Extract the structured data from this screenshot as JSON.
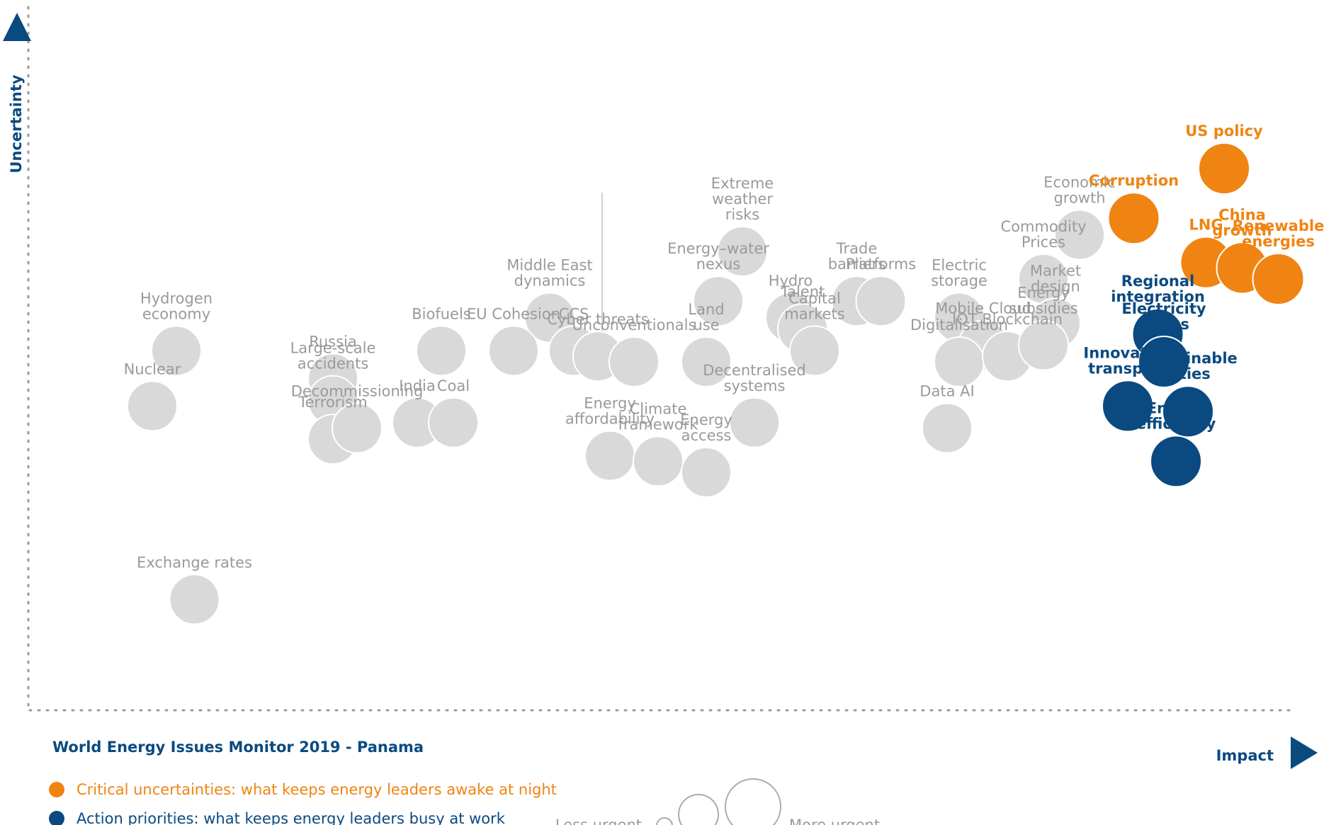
{
  "chart_data": {
    "type": "scatter",
    "title": "World Energy Issues Monitor 2019 - Panama",
    "xlabel": "Impact",
    "ylabel": "Uncertainty",
    "colors": {
      "uncertainty": "#ef8412",
      "priority": "#0b4a80",
      "other": "#d9d9d9",
      "label_grey": "#9a9a9a",
      "title": "#0b4a80",
      "axis": "#9a9a9a"
    },
    "legend": [
      {
        "kind": "uncertainty",
        "text": "Critical uncertainties: what keeps energy leaders awake at night"
      },
      {
        "kind": "priority",
        "text": "Action priorities: what keeps energy leaders busy at work"
      }
    ],
    "size_legend": {
      "less": "Less urgent",
      "more": "More urgent"
    },
    "issues": [
      {
        "name": "Hydrogen economy",
        "lines": [
          "Hydrogen",
          "economy"
        ],
        "kind": "other",
        "impact": 0.07,
        "uncertainty": 0.57
      },
      {
        "name": "Nuclear",
        "lines": [
          "Nuclear"
        ],
        "kind": "other",
        "impact": 0.05,
        "uncertainty": 0.47
      },
      {
        "name": "Exchange rates",
        "lines": [
          "Exchange rates"
        ],
        "kind": "other",
        "impact": 0.085,
        "uncertainty": 0.12
      },
      {
        "name": "Russia",
        "lines": [
          "Russia"
        ],
        "kind": "other",
        "impact": 0.2,
        "uncertainty": 0.52
      },
      {
        "name": "Large-scale accidents",
        "lines": [
          "Large-scale",
          "accidents"
        ],
        "kind": "other",
        "impact": 0.2,
        "uncertainty": 0.48
      },
      {
        "name": "Terrorism",
        "lines": [
          "Terrorism"
        ],
        "kind": "other",
        "impact": 0.2,
        "uncertainty": 0.41
      },
      {
        "name": "Decommissioning",
        "lines": [
          "Decommissioning"
        ],
        "kind": "other",
        "impact": 0.22,
        "uncertainty": 0.43
      },
      {
        "name": "India",
        "lines": [
          "India"
        ],
        "kind": "other",
        "impact": 0.27,
        "uncertainty": 0.44
      },
      {
        "name": "Coal",
        "lines": [
          "Coal"
        ],
        "kind": "other",
        "impact": 0.3,
        "uncertainty": 0.44
      },
      {
        "name": "Biofuels",
        "lines": [
          "Biofuels"
        ],
        "kind": "other",
        "impact": 0.29,
        "uncertainty": 0.57
      },
      {
        "name": "Middle East dynamics",
        "lines": [
          "Middle East",
          "dynamics"
        ],
        "kind": "other",
        "impact": 0.38,
        "uncertainty": 0.63
      },
      {
        "name": "EU Cohesion",
        "lines": [
          "EU Cohesion"
        ],
        "kind": "other",
        "impact": 0.35,
        "uncertainty": 0.57
      },
      {
        "name": "CCS",
        "lines": [
          "CCS"
        ],
        "kind": "other",
        "impact": 0.4,
        "uncertainty": 0.57
      },
      {
        "name": "Cyber threats",
        "lines": [
          "Cyber threats"
        ],
        "kind": "other",
        "impact": 0.42,
        "uncertainty": 0.56
      },
      {
        "name": "Unconventionals",
        "lines": [
          "Unconventionals"
        ],
        "kind": "other",
        "impact": 0.45,
        "uncertainty": 0.55
      },
      {
        "name": "Energy affordability",
        "lines": [
          "Energy",
          "affordability"
        ],
        "kind": "other",
        "impact": 0.43,
        "uncertainty": 0.38
      },
      {
        "name": "Climate framework",
        "lines": [
          "Climate",
          "framework"
        ],
        "kind": "other",
        "impact": 0.47,
        "uncertainty": 0.37
      },
      {
        "name": "Energy access",
        "lines": [
          "Energy",
          "access"
        ],
        "kind": "other",
        "impact": 0.51,
        "uncertainty": 0.35
      },
      {
        "name": "Extreme weather risks",
        "lines": [
          "Extreme",
          "weather",
          "risks"
        ],
        "kind": "other",
        "impact": 0.54,
        "uncertainty": 0.75
      },
      {
        "name": "Energy-water nexus",
        "lines": [
          "Energy–water",
          "nexus"
        ],
        "kind": "other",
        "impact": 0.52,
        "uncertainty": 0.66
      },
      {
        "name": "Land use",
        "lines": [
          "Land",
          "use"
        ],
        "kind": "other",
        "impact": 0.51,
        "uncertainty": 0.55
      },
      {
        "name": "Decentralised systems",
        "lines": [
          "Decentralised",
          "systems"
        ],
        "kind": "other",
        "impact": 0.55,
        "uncertainty": 0.44
      },
      {
        "name": "Hydro",
        "lines": [
          "Hydro"
        ],
        "kind": "other",
        "impact": 0.58,
        "uncertainty": 0.63
      },
      {
        "name": "Talent",
        "lines": [
          "Talent"
        ],
        "kind": "other",
        "impact": 0.59,
        "uncertainty": 0.61
      },
      {
        "name": "Capital markets",
        "lines": [
          "Capital",
          "markets"
        ],
        "kind": "other",
        "impact": 0.6,
        "uncertainty": 0.57
      },
      {
        "name": "Trade barriers",
        "lines": [
          "Trade",
          "barriers"
        ],
        "kind": "other",
        "impact": 0.635,
        "uncertainty": 0.66
      },
      {
        "name": "Platforms",
        "lines": [
          "Platforms"
        ],
        "kind": "other",
        "impact": 0.655,
        "uncertainty": 0.66
      },
      {
        "name": "Electric storage",
        "lines": [
          "Electric",
          "storage"
        ],
        "kind": "other",
        "impact": 0.72,
        "uncertainty": 0.63
      },
      {
        "name": "Mobile Cloud",
        "lines": [
          "Mobile Cloud"
        ],
        "kind": "other",
        "impact": 0.74,
        "uncertainty": 0.58
      },
      {
        "name": "Digitalisation",
        "lines": [
          "Digitalisation"
        ],
        "kind": "other",
        "impact": 0.72,
        "uncertainty": 0.55
      },
      {
        "name": "IOT Blockchain",
        "lines": [
          "IOT Blockchain"
        ],
        "kind": "other",
        "impact": 0.76,
        "uncertainty": 0.56
      },
      {
        "name": "Data AI",
        "lines": [
          "Data AI"
        ],
        "kind": "other",
        "impact": 0.71,
        "uncertainty": 0.43
      },
      {
        "name": "Economic growth",
        "lines": [
          "Economic",
          "growth"
        ],
        "kind": "other",
        "impact": 0.82,
        "uncertainty": 0.78
      },
      {
        "name": "Commodity Prices",
        "lines": [
          "Commodity",
          "Prices"
        ],
        "kind": "other",
        "impact": 0.79,
        "uncertainty": 0.7
      },
      {
        "name": "Market design",
        "lines": [
          "Market",
          "design"
        ],
        "kind": "other",
        "impact": 0.8,
        "uncertainty": 0.62
      },
      {
        "name": "Energy subsidies",
        "lines": [
          "Energy",
          "subsidies"
        ],
        "kind": "other",
        "impact": 0.79,
        "uncertainty": 0.58
      },
      {
        "name": "US policy",
        "lines": [
          "US policy"
        ],
        "kind": "uncertainty",
        "impact": 0.94,
        "uncertainty": 0.9
      },
      {
        "name": "Corruption",
        "lines": [
          "Corruption"
        ],
        "kind": "uncertainty",
        "impact": 0.865,
        "uncertainty": 0.81
      },
      {
        "name": "LNG",
        "lines": [
          "LNG"
        ],
        "kind": "uncertainty",
        "impact": 0.925,
        "uncertainty": 0.73
      },
      {
        "name": "China growth",
        "lines": [
          "China",
          "growth"
        ],
        "kind": "uncertainty",
        "impact": 0.955,
        "uncertainty": 0.72
      },
      {
        "name": "Renewable energies",
        "lines": [
          "Renewable",
          "energies"
        ],
        "kind": "uncertainty",
        "impact": 0.985,
        "uncertainty": 0.7
      },
      {
        "name": "Regional integration",
        "lines": [
          "Regional",
          "integration"
        ],
        "kind": "priority",
        "impact": 0.885,
        "uncertainty": 0.6
      },
      {
        "name": "Electricity prices",
        "lines": [
          "Electricity",
          "prices"
        ],
        "kind": "priority",
        "impact": 0.89,
        "uncertainty": 0.55
      },
      {
        "name": "Innovative transport",
        "lines": [
          "Innovative",
          "transport"
        ],
        "kind": "priority",
        "impact": 0.86,
        "uncertainty": 0.47
      },
      {
        "name": "Sustainable cities",
        "lines": [
          "Sustainable",
          "cities"
        ],
        "kind": "priority",
        "impact": 0.91,
        "uncertainty": 0.46
      },
      {
        "name": "Energy efficiency",
        "lines": [
          "Energy",
          "efficiency"
        ],
        "kind": "priority",
        "impact": 0.9,
        "uncertainty": 0.37
      }
    ]
  }
}
